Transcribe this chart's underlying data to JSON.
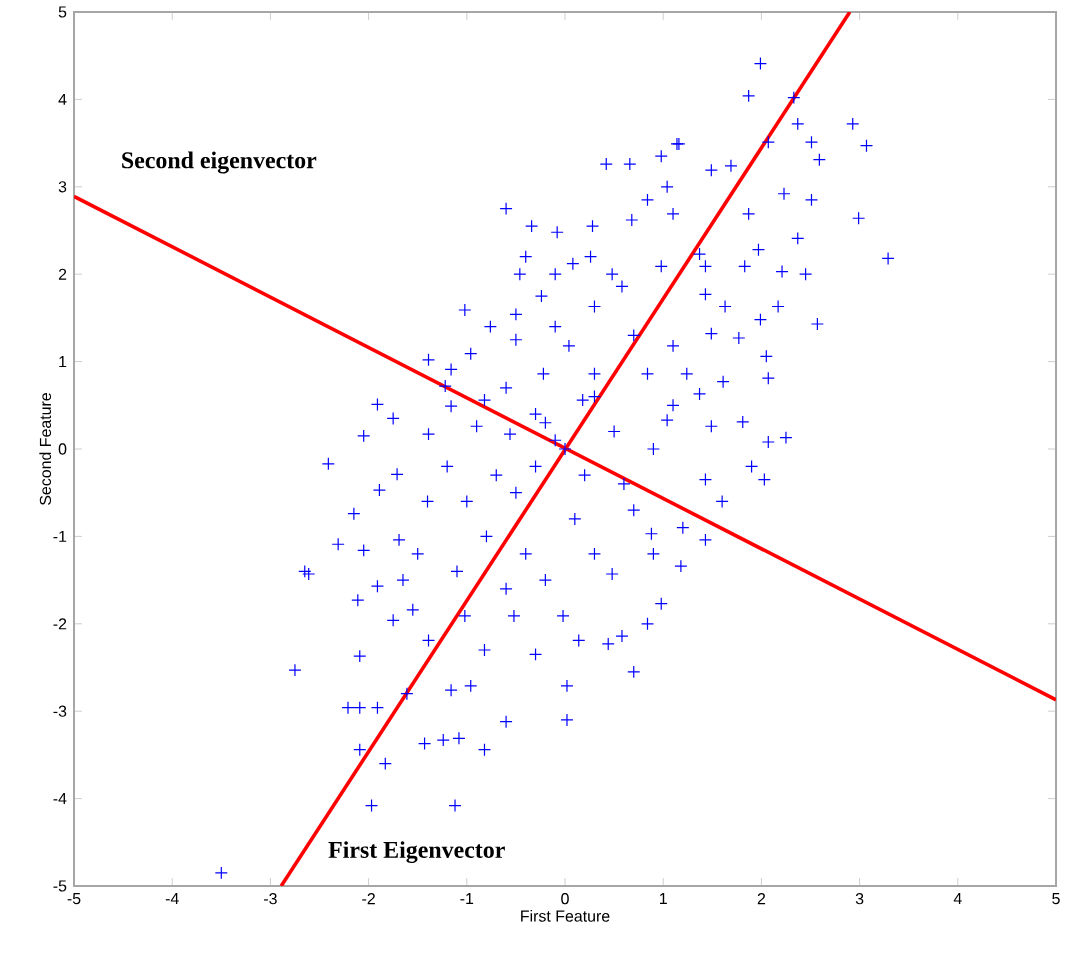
{
  "chart_data": {
    "type": "scatter",
    "xlabel": "First Feature",
    "ylabel": "Second Feature",
    "xlim": [
      -5,
      5
    ],
    "ylim": [
      -5,
      5
    ],
    "xticks": [
      -5,
      -4,
      -3,
      -2,
      -1,
      0,
      1,
      2,
      3,
      4,
      5
    ],
    "yticks": [
      -5,
      -4,
      -3,
      -2,
      -1,
      0,
      1,
      2,
      3,
      4,
      5
    ],
    "grid": false,
    "legend": false,
    "series": [
      {
        "color": "#0000ff",
        "marker": "cross",
        "x": [
          -3.5,
          -2.75,
          -2.65,
          -1.97,
          -1.12,
          -2.09,
          -1.83,
          -2.21,
          -2.09,
          -1.91,
          -1.43,
          -1.24,
          -1.08,
          -0.82,
          -0.6,
          0.02,
          0.02,
          0.7,
          -2.61,
          -2.41,
          -2.31,
          -2.05,
          -2.11,
          -2.09,
          -1.61,
          -1.16,
          -0.96,
          -1.75,
          -1.39,
          -0.82,
          -0.3,
          0.14,
          0.44,
          0.58,
          0.84,
          0.98,
          1.18,
          1.43,
          0.88,
          0.48,
          -0.02,
          -0.52,
          -1.02,
          -1.55,
          -1.65,
          -1.91,
          -1.69,
          -1.89,
          -1.71,
          -2.15,
          -1.91,
          -1.75,
          -2.05,
          -1.39,
          -1.02,
          -0.6,
          -0.34,
          -0.08,
          0.28,
          0.42,
          0.66,
          0.98,
          1.16,
          1.49,
          -0.46,
          -0.4,
          -0.1,
          0.08,
          0.26,
          0.48,
          0.68,
          0.84,
          1.04,
          -0.24,
          -0.5,
          -0.76,
          -0.5,
          -0.96,
          -1.16,
          -1.22,
          -0.82,
          -1.16,
          -0.9,
          -1.39,
          0.3,
          0.58,
          0.98,
          1.37,
          1.43,
          1.49,
          1.1,
          0.84,
          1.37,
          1.04,
          1.49,
          0.04,
          -0.22,
          0.3,
          0.18,
          -0.3,
          -0.56,
          -0.1,
          1.99,
          1.87,
          2.33,
          2.37,
          2.93,
          3.07,
          2.59,
          2.51,
          2.07,
          1.14,
          1.69,
          2.23,
          2.51,
          2.99,
          3.29,
          2.37,
          1.97,
          2.45,
          2.21,
          1.83,
          2.17,
          1.99,
          2.57,
          1.77,
          2.05,
          2.07,
          1.61,
          1.81,
          2.25,
          2.07,
          1.24,
          1.63,
          1.43,
          1.87,
          1.1,
          2.03,
          1.43,
          1.6,
          1.2,
          0.9,
          1.9,
          0.7,
          0,
          0.2,
          -0.3,
          0.5,
          -0.5,
          0.3,
          -0.7,
          -1.0,
          -0.8,
          -0.4,
          0.1,
          0.6,
          -0.2,
          -1.2,
          -1.4,
          -1.5,
          -1.1,
          0.9,
          -0.6,
          -0.2,
          0.3,
          1.1,
          0.7,
          -0.1,
          -0.6
        ],
        "values": [
          -4.85,
          -2.53,
          -1.4,
          -4.08,
          -4.08,
          -3.44,
          -3.6,
          -2.96,
          -2.96,
          -2.96,
          -3.37,
          -3.33,
          -3.31,
          -3.44,
          -3.12,
          -3.1,
          -2.71,
          -2.55,
          -1.43,
          -0.17,
          -1.09,
          -1.16,
          -1.73,
          -2.37,
          -2.8,
          -2.76,
          -2.71,
          -1.96,
          -2.19,
          -2.3,
          -2.35,
          -2.19,
          -2.23,
          -2.14,
          -2.0,
          -1.77,
          -1.34,
          -0.35,
          -0.97,
          -1.43,
          -1.91,
          -1.91,
          -1.91,
          -1.84,
          -1.5,
          -1.57,
          -1.04,
          -0.47,
          -0.29,
          -0.74,
          0.51,
          0.35,
          0.15,
          1.02,
          1.59,
          2.75,
          2.55,
          2.48,
          2.55,
          3.26,
          3.26,
          3.35,
          3.49,
          3.19,
          2.0,
          2.2,
          2.0,
          2.12,
          2.2,
          2.0,
          2.62,
          2.85,
          3.0,
          1.75,
          1.54,
          1.4,
          1.25,
          1.09,
          0.91,
          0.72,
          0.56,
          0.49,
          0.26,
          0.17,
          1.63,
          1.86,
          2.09,
          2.23,
          1.77,
          1.32,
          1.18,
          0.86,
          0.63,
          0.33,
          0.26,
          1.18,
          0.86,
          0.86,
          0.56,
          0.4,
          0.17,
          0.1,
          4.41,
          4.04,
          4.02,
          3.72,
          3.72,
          3.47,
          3.31,
          3.51,
          3.51,
          3.49,
          3.24,
          2.92,
          2.85,
          2.64,
          2.18,
          2.41,
          2.28,
          2.0,
          2.03,
          2.09,
          1.63,
          1.48,
          1.43,
          1.27,
          1.06,
          0.81,
          0.77,
          0.31,
          0.13,
          0.08,
          0.86,
          1.63,
          2.09,
          2.69,
          2.69,
          -0.35,
          -1.04,
          -0.6,
          -0.9,
          -1.2,
          -0.2,
          -0.7,
          0,
          -0.3,
          -0.2,
          0.2,
          -0.5,
          0.6,
          -0.3,
          -0.6,
          -1.0,
          -1.2,
          -0.8,
          -0.4,
          0.3,
          -0.2,
          -0.6,
          -1.2,
          -1.4,
          0.0,
          -1.6,
          -1.5,
          -1.2,
          0.5,
          1.3,
          1.4,
          0.7
        ]
      },
      {
        "type": "line",
        "name": "First Eigenvector",
        "color": "#ff0000",
        "marker": "none",
        "line_style": "solid",
        "x": [
          -2.89,
          2.9
        ],
        "values": [
          -5,
          5
        ]
      },
      {
        "type": "line",
        "name": "Second eigenvector",
        "color": "#ff0000",
        "marker": "none",
        "line_style": "solid",
        "x": [
          -5,
          5
        ],
        "values": [
          2.89,
          -2.87
        ]
      }
    ]
  }
}
